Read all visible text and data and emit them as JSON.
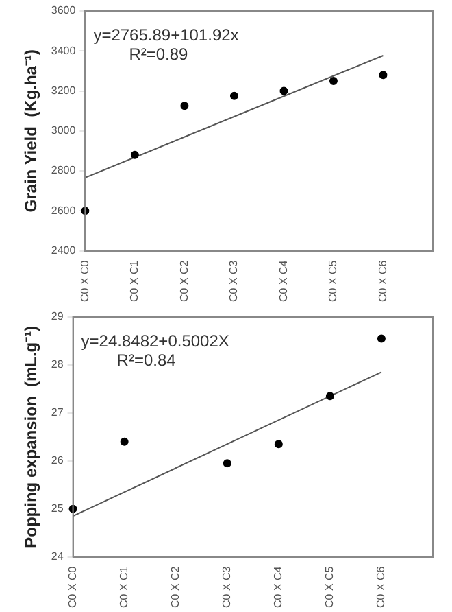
{
  "chart_data": [
    {
      "type": "scatter",
      "ylabel": "Grain Yield  (Kg.ha⁻¹)",
      "categories": [
        "C0 X C0",
        "C0 X C1",
        "C0 X C2",
        "C0 X C3",
        "C0 X C4",
        "C0 X C5",
        "C0 X C6",
        null
      ],
      "ylim": [
        2400,
        3600
      ],
      "yticks": [
        2400,
        2600,
        2800,
        3000,
        3200,
        3400,
        3600
      ],
      "grid": false,
      "legend": false,
      "annotations": [
        "y=2765.89+101.92x",
        "R²=0.89"
      ],
      "series": [
        {
          "marker": "circle",
          "color": "#000000",
          "values": [
            2600,
            2880,
            3125,
            3175,
            3200,
            3250,
            3280,
            null
          ]
        },
        {
          "type": "line",
          "marker": "none",
          "color": "#555555",
          "line_style": "solid",
          "x": [
            "C0 X C0",
            "C0 X C6"
          ],
          "values": [
            2766,
            3377
          ]
        }
      ]
    },
    {
      "type": "scatter",
      "ylabel": "Popping expansion  (mL.g⁻¹)",
      "categories": [
        "C0 X C0",
        "C0 X C1",
        "C0 X C2",
        "C0 X C3",
        "C0 X C4",
        "C0 X C5",
        "C0 X C6",
        null
      ],
      "ylim": [
        24,
        29
      ],
      "yticks": [
        24,
        25,
        26,
        27,
        28,
        29
      ],
      "grid": false,
      "legend": false,
      "annotations": [
        "y=24.8482+0.5002X",
        "R²=0.84"
      ],
      "series": [
        {
          "marker": "circle",
          "color": "#000000",
          "values": [
            25.0,
            26.4,
            null,
            25.95,
            26.35,
            27.35,
            28.55,
            null
          ]
        },
        {
          "type": "line",
          "marker": "none",
          "color": "#555555",
          "line_style": "solid",
          "x": [
            "C0 X C0",
            "C0 X C6"
          ],
          "values": [
            24.85,
            27.85
          ]
        }
      ]
    }
  ]
}
